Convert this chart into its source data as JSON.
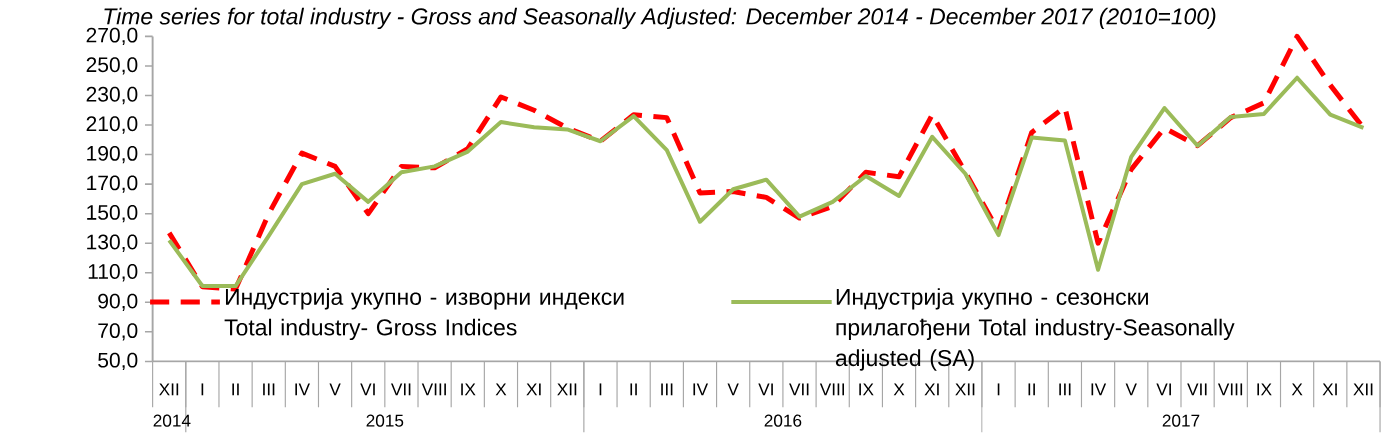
{
  "chart_data": {
    "type": "line",
    "title": "Time series for total industry - Gross and Seasonally Adjusted: December 2014 - December 2017 (2010=100)",
    "categories": [
      "XII",
      "I",
      "II",
      "III",
      "IV",
      "V",
      "VI",
      "VII",
      "VIII",
      "IX",
      "X",
      "XI",
      "XII",
      "I",
      "II",
      "III",
      "IV",
      "V",
      "VI",
      "VII",
      "VIII",
      "IX",
      "X",
      "XI",
      "XII",
      "I",
      "II",
      "III",
      "IV",
      "V",
      "VI",
      "VII",
      "VIII",
      "IX",
      "X",
      "XI",
      "XII"
    ],
    "series": [
      {
        "name": "Индустрија укупно - изворни индекси Total industry- Gross Indices",
        "color": "#ff0000",
        "line_style": "dashed",
        "values": [
          137,
          100.5,
          99,
          150,
          191,
          182,
          150,
          182,
          181,
          194,
          229,
          220,
          208,
          199,
          217,
          215,
          164,
          165,
          161,
          147,
          155,
          178,
          175,
          217,
          178,
          138,
          205,
          222,
          130,
          180,
          208,
          196,
          215,
          225,
          270,
          237,
          208
        ]
      },
      {
        "name": "Индустрија укупно - сезонски прилагођени Total industry-Seasonally adjusted (SA)",
        "color": "#9bbb59",
        "line_style": "solid",
        "values": [
          132,
          101,
          101,
          135,
          170,
          177,
          158,
          178,
          182,
          192,
          212,
          208.5,
          207,
          199,
          216,
          193,
          144.5,
          166.5,
          173,
          148,
          158,
          175.5,
          162,
          202,
          177,
          135.5,
          201.5,
          199.5,
          112,
          188.5,
          221.5,
          196,
          215.5,
          217.5,
          242,
          217,
          208
        ]
      }
    ],
    "ylim": [
      50,
      270
    ],
    "yticks": [
      {
        "value": 50,
        "label": "50,0"
      },
      {
        "value": 70,
        "label": "70,0"
      },
      {
        "value": 90,
        "label": "90,0"
      },
      {
        "value": 110,
        "label": "110,0"
      },
      {
        "value": 130,
        "label": "130,0"
      },
      {
        "value": 150,
        "label": "150,0"
      },
      {
        "value": 170,
        "label": "170,0"
      },
      {
        "value": 190,
        "label": "190,0"
      },
      {
        "value": 210,
        "label": "210,0"
      },
      {
        "value": 230,
        "label": "230,0"
      },
      {
        "value": 250,
        "label": "250,0"
      },
      {
        "value": 270,
        "label": "270,0"
      }
    ],
    "annotations": [
      "2014",
      "2015",
      "2016",
      "2017"
    ],
    "legend": "bottom",
    "grid": false,
    "marker": "none"
  }
}
